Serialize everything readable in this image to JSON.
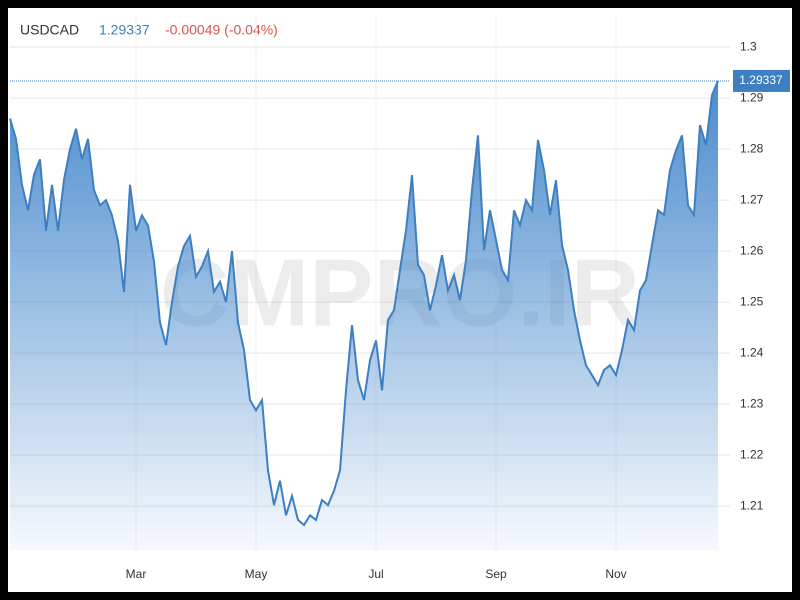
{
  "chart_data": {
    "type": "area",
    "title": "USDCAD",
    "change": "-0.00049 (-0.04%)",
    "watermark": "CMPRO.IR",
    "color": "#3d7fc1",
    "grid": true,
    "categories": [
      null,
      null,
      null,
      null,
      null,
      null,
      null,
      null,
      null,
      null,
      null,
      null,
      null,
      null,
      null,
      null,
      null,
      null,
      null,
      null,
      null,
      "Mar",
      null,
      null,
      null,
      null,
      null,
      null,
      null,
      null,
      null,
      null,
      null,
      null,
      null,
      null,
      null,
      null,
      null,
      null,
      null,
      "May",
      null,
      null,
      null,
      null,
      null,
      null,
      null,
      null,
      null,
      null,
      null,
      null,
      null,
      null,
      null,
      null,
      null,
      null,
      null,
      "Jul",
      null,
      null,
      null,
      null,
      null,
      null,
      null,
      null,
      null,
      null,
      null,
      null,
      null,
      null,
      null,
      null,
      null,
      null,
      null,
      "Sep",
      null,
      null,
      null,
      null,
      null,
      null,
      null,
      null,
      null,
      null,
      null,
      null,
      null,
      null,
      null,
      null,
      null,
      null,
      null,
      "Nov",
      null,
      null,
      null,
      null,
      null,
      null,
      null,
      null,
      null,
      null,
      null,
      null,
      null,
      null,
      null,
      null,
      null
    ],
    "values": [
      1.286,
      1.282,
      1.273,
      1.268,
      1.275,
      1.278,
      1.264,
      1.273,
      1.264,
      1.274,
      1.28,
      1.284,
      1.278,
      1.282,
      1.272,
      1.269,
      1.27,
      1.267,
      1.262,
      1.252,
      1.273,
      1.264,
      1.267,
      1.265,
      1.258,
      1.246,
      1.2416,
      1.25,
      1.257,
      1.261,
      1.263,
      1.255,
      1.257,
      1.26,
      1.252,
      1.254,
      1.25,
      1.26,
      1.246,
      1.2406,
      1.2308,
      1.2288,
      1.2308,
      1.217,
      1.2102,
      1.215,
      1.2082,
      1.212,
      1.2073,
      1.2063,
      1.2082,
      1.2073,
      1.2112,
      1.2102,
      1.213,
      1.217,
      1.2327,
      1.2455,
      1.2347,
      1.2308,
      1.2386,
      1.2425,
      1.2327,
      1.2465,
      1.2484,
      1.2563,
      1.2641,
      1.2749,
      1.2573,
      1.2553,
      1.2484,
      1.2533,
      1.2592,
      1.2523,
      1.2553,
      1.2504,
      1.2582,
      1.272,
      1.2827,
      1.2602,
      1.268,
      1.2622,
      1.2563,
      1.2543,
      1.268,
      1.2651,
      1.27,
      1.268,
      1.2818,
      1.2759,
      1.2671,
      1.2739,
      1.2612,
      1.2563,
      1.2484,
      1.2425,
      1.2376,
      1.2357,
      1.2337,
      1.2367,
      1.2376,
      1.2357,
      1.2406,
      1.2465,
      1.2445,
      1.2523,
      1.2543,
      1.2612,
      1.268,
      1.2671,
      1.2759,
      1.2798,
      1.2827,
      1.269,
      1.2671,
      1.2847,
      1.2808,
      1.2906,
      1.29337
    ],
    "ylim": [
      1.2014,
      1.3063
    ],
    "yticks": [
      1.21,
      1.22,
      1.23,
      1.24,
      1.25,
      1.26,
      1.27,
      1.28,
      1.29,
      1.3
    ]
  }
}
